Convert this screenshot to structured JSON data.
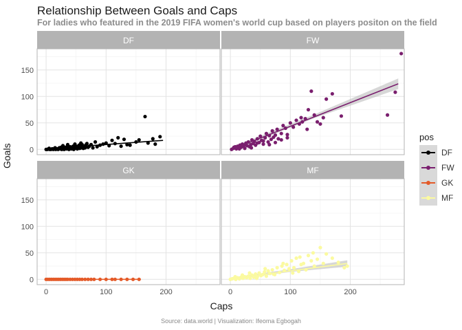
{
  "header": {
    "title": "Relationship Between Goals and Caps",
    "subtitle": "For ladies who featured in the 2019 FIFA women's world cup based on players positon on the field"
  },
  "footer": {
    "caption": "Source: data.world | Visualization: Ifeoma Egbogah"
  },
  "legend": {
    "title": "pos",
    "items": [
      {
        "label": "DF",
        "color": "#000000"
      },
      {
        "label": "FW",
        "color": "#7a1f6e"
      },
      {
        "label": "GK",
        "color": "#e45a28"
      },
      {
        "label": "MF",
        "color": "#fbfaa0"
      }
    ]
  },
  "chart_data": {
    "type": "scatter",
    "title": "Relationship Between Goals and Caps",
    "subtitle": "For ladies who featured in the 2019 FIFA women's world cup based on players positon on the field",
    "xlabel": "Caps",
    "ylabel": "Goals",
    "xlim": [
      -15,
      290
    ],
    "ylim": [
      -10,
      190
    ],
    "x_ticks": [
      0,
      100,
      200
    ],
    "y_ticks": [
      0,
      50,
      100,
      150
    ],
    "grid": true,
    "legend_position": "right",
    "facets": [
      {
        "label": "DF",
        "color": "#000000",
        "points": [
          [
            0,
            0
          ],
          [
            2,
            0
          ],
          [
            4,
            1
          ],
          [
            6,
            0
          ],
          [
            8,
            0
          ],
          [
            10,
            1
          ],
          [
            12,
            0
          ],
          [
            14,
            2
          ],
          [
            16,
            0
          ],
          [
            18,
            1
          ],
          [
            20,
            0
          ],
          [
            22,
            3
          ],
          [
            24,
            1
          ],
          [
            26,
            0
          ],
          [
            28,
            2
          ],
          [
            30,
            0
          ],
          [
            32,
            4
          ],
          [
            34,
            1
          ],
          [
            36,
            2
          ],
          [
            38,
            0
          ],
          [
            40,
            5
          ],
          [
            42,
            1
          ],
          [
            44,
            3
          ],
          [
            46,
            0
          ],
          [
            48,
            2
          ],
          [
            50,
            6
          ],
          [
            52,
            1
          ],
          [
            54,
            4
          ],
          [
            56,
            2
          ],
          [
            58,
            3
          ],
          [
            60,
            9
          ],
          [
            62,
            2
          ],
          [
            64,
            5
          ],
          [
            66,
            8
          ],
          [
            68,
            11
          ],
          [
            70,
            4
          ],
          [
            72,
            6
          ],
          [
            75,
            9
          ],
          [
            78,
            3
          ],
          [
            82,
            14
          ],
          [
            85,
            5
          ],
          [
            90,
            8
          ],
          [
            95,
            10
          ],
          [
            100,
            12
          ],
          [
            105,
            7
          ],
          [
            110,
            17
          ],
          [
            115,
            11
          ],
          [
            120,
            22
          ],
          [
            125,
            6
          ],
          [
            130,
            19
          ],
          [
            135,
            9
          ],
          [
            140,
            8
          ],
          [
            150,
            14
          ],
          [
            155,
            18
          ],
          [
            165,
            62
          ],
          [
            170,
            12
          ],
          [
            178,
            20
          ],
          [
            182,
            10
          ],
          [
            190,
            24
          ],
          [
            5,
            2
          ],
          [
            15,
            3
          ],
          [
            25,
            4
          ],
          [
            35,
            5
          ],
          [
            45,
            6
          ],
          [
            55,
            8
          ],
          [
            65,
            3
          ],
          [
            28,
            7
          ],
          [
            36,
            9
          ],
          [
            48,
            10
          ],
          [
            58,
            12
          ]
        ],
        "trend": [
          [
            0,
            1
          ],
          [
            195,
            17
          ]
        ]
      },
      {
        "label": "FW",
        "color": "#7a1f6e",
        "points": [
          [
            2,
            0
          ],
          [
            5,
            2
          ],
          [
            8,
            5
          ],
          [
            10,
            1
          ],
          [
            12,
            6
          ],
          [
            14,
            3
          ],
          [
            16,
            8
          ],
          [
            18,
            4
          ],
          [
            20,
            10
          ],
          [
            22,
            6
          ],
          [
            24,
            2
          ],
          [
            26,
            12
          ],
          [
            28,
            7
          ],
          [
            30,
            14
          ],
          [
            32,
            5
          ],
          [
            34,
            9
          ],
          [
            36,
            18
          ],
          [
            38,
            11
          ],
          [
            40,
            15
          ],
          [
            42,
            8
          ],
          [
            45,
            20
          ],
          [
            48,
            13
          ],
          [
            50,
            25
          ],
          [
            52,
            17
          ],
          [
            55,
            10
          ],
          [
            58,
            22
          ],
          [
            60,
            30
          ],
          [
            63,
            14
          ],
          [
            65,
            26
          ],
          [
            68,
            19
          ],
          [
            70,
            35
          ],
          [
            72,
            23
          ],
          [
            75,
            27
          ],
          [
            78,
            38
          ],
          [
            80,
            20
          ],
          [
            85,
            30
          ],
          [
            88,
            45
          ],
          [
            92,
            40
          ],
          [
            95,
            28
          ],
          [
            100,
            50
          ],
          [
            105,
            42
          ],
          [
            110,
            55
          ],
          [
            115,
            48
          ],
          [
            118,
            60
          ],
          [
            120,
            52
          ],
          [
            125,
            58
          ],
          [
            128,
            38
          ],
          [
            130,
            75
          ],
          [
            135,
            110
          ],
          [
            140,
            65
          ],
          [
            145,
            52
          ],
          [
            150,
            48
          ],
          [
            155,
            60
          ],
          [
            160,
            95
          ],
          [
            170,
            105
          ],
          [
            185,
            63
          ],
          [
            262,
            65
          ],
          [
            275,
            108
          ],
          [
            285,
            181
          ],
          [
            6,
            4
          ],
          [
            15,
            1
          ],
          [
            25,
            9
          ],
          [
            35,
            3
          ],
          [
            45,
            12
          ],
          [
            55,
            16
          ],
          [
            65,
            9
          ],
          [
            75,
            13
          ],
          [
            85,
            18
          ],
          [
            95,
            22
          ]
        ],
        "trend": [
          [
            0,
            -1
          ],
          [
            280,
            124
          ]
        ],
        "band": [
          [
            0,
            -4,
            3
          ],
          [
            140,
            59,
            66
          ],
          [
            280,
            114,
            134
          ]
        ]
      },
      {
        "label": "GK",
        "color": "#e45a28",
        "points": [
          [
            0,
            0
          ],
          [
            3,
            0
          ],
          [
            6,
            0
          ],
          [
            9,
            0
          ],
          [
            12,
            0
          ],
          [
            15,
            0
          ],
          [
            18,
            0
          ],
          [
            21,
            0
          ],
          [
            24,
            0
          ],
          [
            27,
            0
          ],
          [
            30,
            0
          ],
          [
            33,
            0
          ],
          [
            36,
            0
          ],
          [
            40,
            0
          ],
          [
            44,
            0
          ],
          [
            48,
            0
          ],
          [
            52,
            0
          ],
          [
            56,
            0
          ],
          [
            60,
            0
          ],
          [
            65,
            0
          ],
          [
            70,
            0
          ],
          [
            75,
            0
          ],
          [
            80,
            0
          ],
          [
            90,
            0
          ],
          [
            100,
            0
          ],
          [
            110,
            0
          ],
          [
            115,
            0
          ],
          [
            125,
            0
          ],
          [
            135,
            0
          ],
          [
            145,
            0
          ],
          [
            155,
            0
          ]
        ],
        "trend": [
          [
            0,
            0
          ],
          [
            158,
            0
          ]
        ]
      },
      {
        "label": "MF",
        "color": "#fbfaa0",
        "points": [
          [
            0,
            0
          ],
          [
            3,
            1
          ],
          [
            6,
            2
          ],
          [
            9,
            0
          ],
          [
            12,
            3
          ],
          [
            15,
            1
          ],
          [
            18,
            4
          ],
          [
            21,
            2
          ],
          [
            24,
            5
          ],
          [
            27,
            3
          ],
          [
            30,
            6
          ],
          [
            33,
            2
          ],
          [
            36,
            8
          ],
          [
            39,
            4
          ],
          [
            42,
            10
          ],
          [
            45,
            5
          ],
          [
            48,
            12
          ],
          [
            51,
            7
          ],
          [
            54,
            9
          ],
          [
            57,
            14
          ],
          [
            60,
            6
          ],
          [
            63,
            16
          ],
          [
            66,
            11
          ],
          [
            70,
            18
          ],
          [
            74,
            9
          ],
          [
            78,
            22
          ],
          [
            82,
            13
          ],
          [
            86,
            25
          ],
          [
            90,
            17
          ],
          [
            94,
            28
          ],
          [
            98,
            20
          ],
          [
            102,
            35
          ],
          [
            106,
            22
          ],
          [
            110,
            40
          ],
          [
            114,
            15
          ],
          [
            118,
            28
          ],
          [
            122,
            30
          ],
          [
            126,
            18
          ],
          [
            130,
            45
          ],
          [
            135,
            35
          ],
          [
            140,
            25
          ],
          [
            145,
            38
          ],
          [
            150,
            60
          ],
          [
            155,
            30
          ],
          [
            160,
            48
          ],
          [
            170,
            40
          ],
          [
            180,
            32
          ],
          [
            190,
            22
          ],
          [
            195,
            25
          ],
          [
            8,
            5
          ],
          [
            20,
            8
          ],
          [
            32,
            12
          ],
          [
            44,
            2
          ],
          [
            58,
            20
          ],
          [
            72,
            10
          ],
          [
            88,
            30
          ],
          [
            104,
            12
          ],
          [
            116,
            42
          ],
          [
            138,
            50
          ]
        ],
        "trend": [
          [
            0,
            1
          ],
          [
            195,
            30
          ]
        ],
        "band": [
          [
            0,
            -1,
            3
          ],
          [
            100,
            14,
            19
          ],
          [
            195,
            24,
            36
          ]
        ]
      }
    ]
  }
}
